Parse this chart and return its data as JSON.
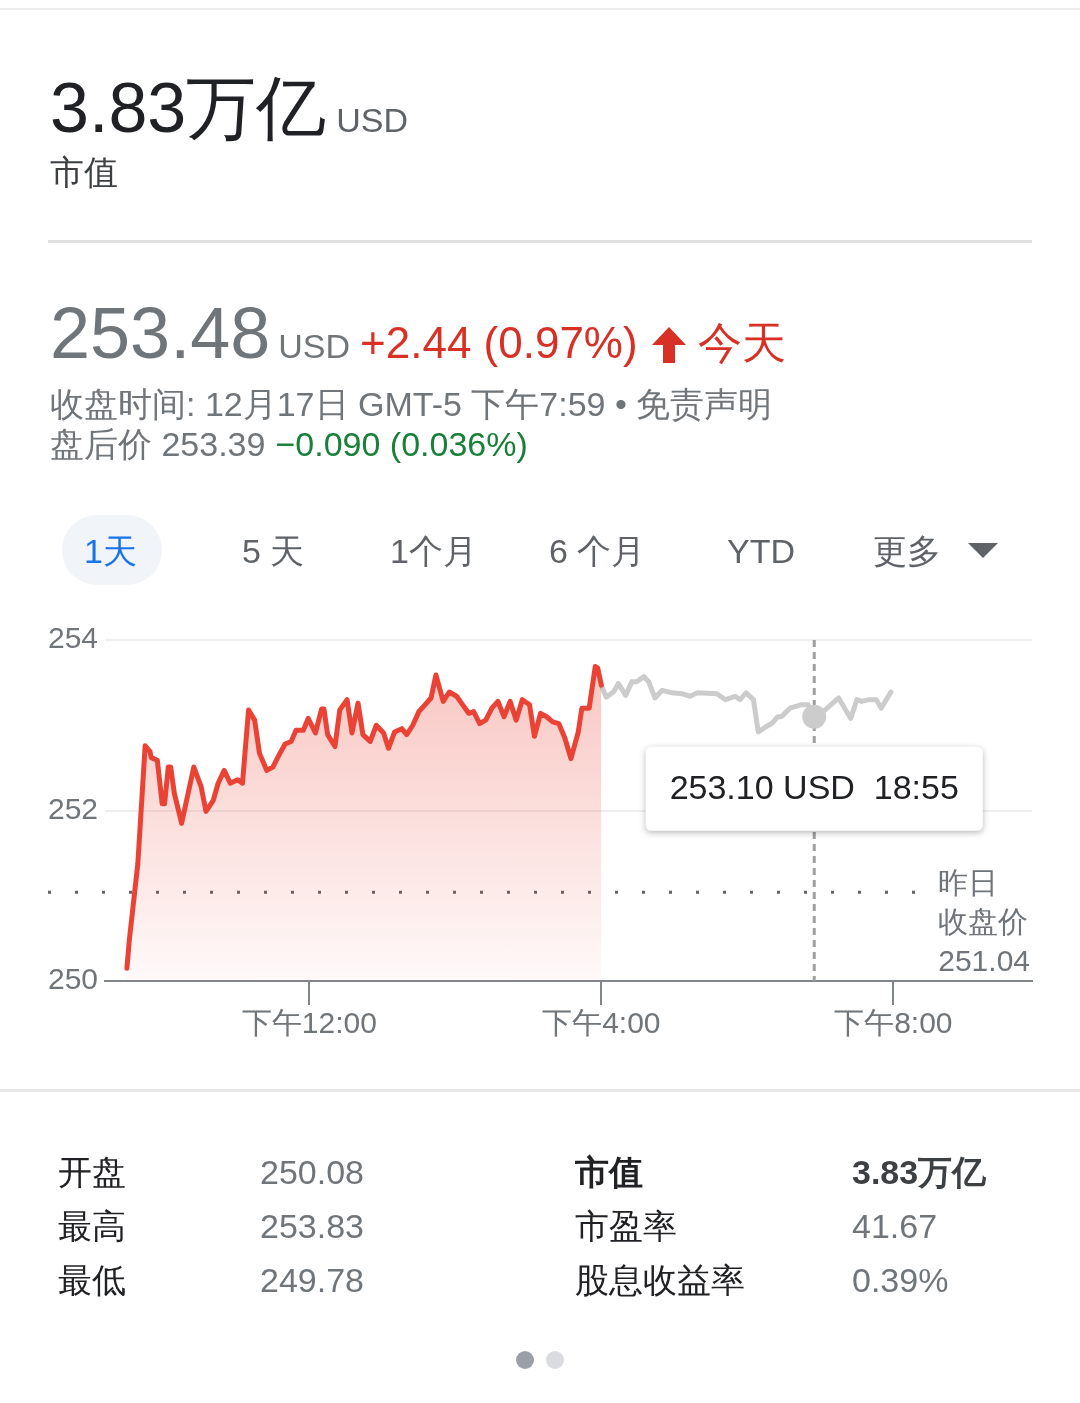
{
  "chart_data": {
    "type": "line",
    "series": [
      {
        "type": "area",
        "color": "#ea4335",
        "x": [
          "--12-17T09:30",
          "--12-17T09:32",
          "--12-17T09:39",
          "--12-17T09:45",
          "--12-17T09:49",
          "--12-17T09:50",
          "--12-17T09:55",
          "--12-17T09:59",
          "--12-17T10:01",
          "--12-17T10:04",
          "--12-17T10:06",
          "--12-17T10:09",
          "--12-17T10:15",
          "--12-17T10:25",
          "--12-17T10:31",
          "--12-17T10:35",
          "--12-17T10:41",
          "--12-17T10:45",
          "--12-17T10:50",
          "--12-17T10:55",
          "--12-17T11:01",
          "--12-17T11:05",
          "--12-17T11:10",
          "--12-17T11:15",
          "--12-17T11:19",
          "--12-17T11:25",
          "--12-17T11:30",
          "--12-17T11:35",
          "--12-17T11:40",
          "--12-17T11:45",
          "--12-17T11:49",
          "--12-17T11:55",
          "--12-17T11:59",
          "--12-17T12:05",
          "--12-17T12:10",
          "--12-17T12:12",
          "--12-17T12:15",
          "--12-17T12:21",
          "--12-17T12:25",
          "--12-17T12:31",
          "--12-17T12:35",
          "--12-17T12:40",
          "--12-17T12:44",
          "--12-17T12:50",
          "--12-17T12:55",
          "--12-17T13:01",
          "--12-17T13:05",
          "--12-17T13:10",
          "--12-17T13:16",
          "--12-17T13:20",
          "--12-17T13:25",
          "--12-17T13:30",
          "--12-17T13:35",
          "--12-17T13:40",
          "--12-17T13:44",
          "--12-17T13:50",
          "--12-17T13:55",
          "--12-17T14:01",
          "--12-17T14:05",
          "--12-17T14:11",
          "--12-17T14:15",
          "--12-17T14:20",
          "--12-17T14:25",
          "--12-17T14:30",
          "--12-17T14:35",
          "--12-17T14:40",
          "--12-17T14:45",
          "--12-17T14:50",
          "--12-17T14:55",
          "--12-17T15:01",
          "--12-17T15:05",
          "--12-17T15:10",
          "--12-17T15:15",
          "--12-17T15:20",
          "--12-17T15:25",
          "--12-17T15:30",
          "--12-17T15:35",
          "--12-17T15:41",
          "--12-17T15:44",
          "--12-17T15:50",
          "--12-17T15:55",
          "--12-17T15:57",
          "--12-17T16:00"
        ],
        "values": [
          250.15,
          250.48,
          251.38,
          252.76,
          252.69,
          252.62,
          252.59,
          252.08,
          252.08,
          252.51,
          252.51,
          252.2,
          251.85,
          252.51,
          252.28,
          251.99,
          252.12,
          252.32,
          252.47,
          252.32,
          252.36,
          252.32,
          253.18,
          253.06,
          252.67,
          252.47,
          252.51,
          252.65,
          252.78,
          252.81,
          252.94,
          252.94,
          253.08,
          252.91,
          253.19,
          253.19,
          252.89,
          252.75,
          253.18,
          253.3,
          252.91,
          253.26,
          252.89,
          252.81,
          253.0,
          252.91,
          252.73,
          252.92,
          252.96,
          252.89,
          253.0,
          253.16,
          253.24,
          253.32,
          253.59,
          253.28,
          253.39,
          253.34,
          253.26,
          253.14,
          253.16,
          253.02,
          253.06,
          253.2,
          253.28,
          253.1,
          253.28,
          253.06,
          253.3,
          253.24,
          252.87,
          253.14,
          253.1,
          253.04,
          253.02,
          252.85,
          252.61,
          252.92,
          253.2,
          253.2,
          253.69,
          253.67,
          253.47
        ]
      },
      {
        "color": "#cccccc",
        "x": [
          "--12-17T16:00",
          "--12-17T16:04",
          "--12-17T16:10",
          "--12-17T16:14",
          "--12-17T16:20",
          "--12-17T16:25",
          "--12-17T16:29",
          "--12-17T16:35",
          "--12-17T16:39",
          "--12-17T16:44",
          "--12-17T16:50",
          "--12-17T16:58",
          "--12-17T17:06",
          "--12-17T17:13",
          "--12-17T17:19",
          "--12-17T17:35",
          "--12-17T17:42",
          "--12-17T17:50",
          "--12-17T17:54",
          "--12-17T17:59",
          "--12-17T18:05",
          "--12-17T18:09",
          "--12-17T18:15",
          "--12-17T18:20",
          "--12-17T18:25",
          "--12-17T18:28",
          "--12-17T18:35",
          "--12-17T18:44",
          "--12-17T18:50",
          "--12-17T18:55",
          "--12-17T19:04",
          "--12-17T19:15",
          "--12-17T19:25",
          "--12-17T19:30",
          "--12-17T19:34",
          "--12-17T19:40",
          "--12-17T19:46",
          "--12-17T19:50",
          "--12-17T19:58"
        ],
        "values": [
          253.47,
          253.33,
          253.39,
          253.49,
          253.35,
          253.51,
          253.51,
          253.57,
          253.51,
          253.32,
          253.41,
          253.38,
          253.37,
          253.34,
          253.38,
          253.37,
          253.3,
          253.34,
          253.3,
          253.38,
          253.3,
          252.92,
          252.98,
          253.02,
          253.1,
          253.1,
          253.2,
          253.24,
          253.24,
          253.1,
          253.18,
          253.32,
          253.08,
          253.3,
          253.28,
          253.3,
          253.3,
          253.2,
          253.39
        ]
      }
    ],
    "xlim": [
      "--12-17T09:12",
      "--12-17T21:54"
    ],
    "xticks": [
      {
        "value": "--12-17T12:00",
        "label": "下午12:00"
      },
      {
        "value": "--12-17T16:00",
        "label": "下午4:00"
      },
      {
        "value": "--12-17T20:00",
        "label": "下午8:00"
      }
    ],
    "ylim": [
      250,
      254
    ],
    "yticks": [
      250,
      252,
      254
    ],
    "grid": "y",
    "ref_lines": [
      {
        "axis": "y",
        "value": 251.04,
        "label": "昨日收盘价 251.04",
        "color": "#5f6368",
        "line_style": "dotted"
      },
      {
        "axis": "x",
        "value": "--12-17T18:55",
        "color": "#9e9e9e",
        "line_style": "dashed"
      }
    ],
    "annotations": [
      "3.83万亿",
      "USD",
      "市值",
      "253.48",
      "USD",
      "+2.44 (0.97%)",
      "今天",
      "收盘时间: 12月17日 GMT-5 下午7:59 • 免责声明",
      "盘后价 253.39",
      "−0.090 (0.036%)",
      "1天",
      "5 天",
      "1个月",
      "6 个月",
      "YTD",
      "更多",
      "开盘",
      "250.08",
      "最高",
      "253.83",
      "最低",
      "249.78",
      "市值",
      "3.83万亿",
      "市盈率",
      "41.67",
      "股息收益率",
      "0.39%",
      {
        "text": "253.10 USD  18:55",
        "x": "--12-17T18:55",
        "y": 253.1
      }
    ]
  }
}
